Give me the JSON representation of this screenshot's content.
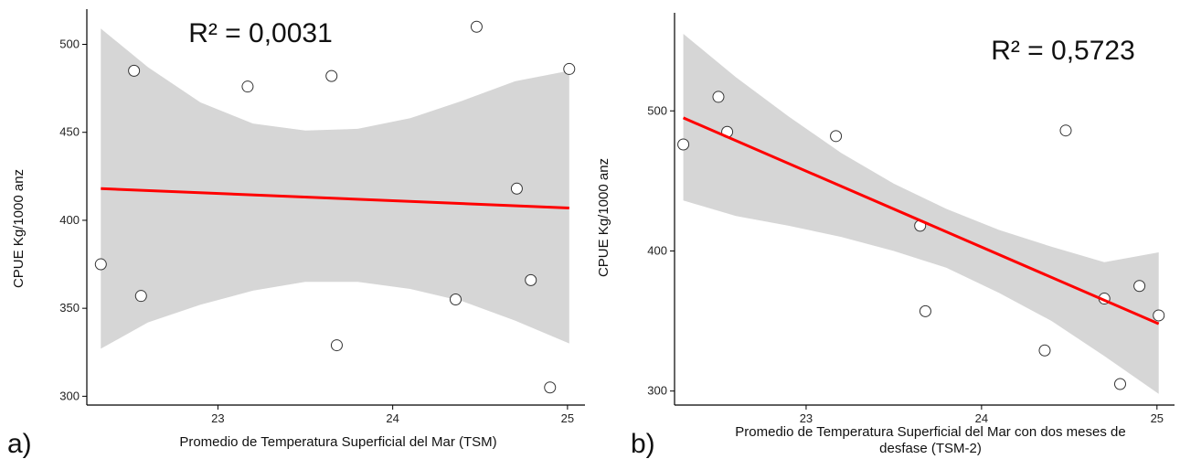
{
  "chart_data": [
    {
      "type": "scatter",
      "panel_label": "a)",
      "annotation": "R² = 0,0031",
      "xlabel": "Promedio de Temperatura Superficial del Mar (TSM)",
      "ylabel": "CPUE Kg/1000 anz",
      "xlim": [
        22.25,
        25.1
      ],
      "ylim": [
        295,
        520
      ],
      "x_ticks": [
        23,
        24,
        25
      ],
      "x_tick_labels": [
        "23",
        "24",
        "25"
      ],
      "y_ticks": [
        300,
        350,
        400,
        450,
        500
      ],
      "y_tick_labels": [
        "300",
        "350",
        "400",
        "450",
        "500"
      ],
      "points": [
        {
          "x": 22.33,
          "y": 375
        },
        {
          "x": 22.52,
          "y": 485
        },
        {
          "x": 22.56,
          "y": 357
        },
        {
          "x": 23.17,
          "y": 476
        },
        {
          "x": 23.65,
          "y": 482
        },
        {
          "x": 23.68,
          "y": 329
        },
        {
          "x": 24.36,
          "y": 355
        },
        {
          "x": 24.48,
          "y": 510
        },
        {
          "x": 24.71,
          "y": 418
        },
        {
          "x": 24.79,
          "y": 366
        },
        {
          "x": 24.9,
          "y": 305
        },
        {
          "x": 25.01,
          "y": 486
        }
      ],
      "fit_line": {
        "x": [
          22.33,
          25.01
        ],
        "y": [
          418,
          407
        ]
      },
      "confidence_band": {
        "x": [
          22.33,
          22.6,
          22.9,
          23.2,
          23.5,
          23.8,
          24.1,
          24.4,
          24.7,
          25.01
        ],
        "upper": [
          509,
          487,
          467,
          455,
          451,
          452,
          458,
          468,
          479,
          485
        ],
        "lower": [
          327,
          342,
          352,
          360,
          365,
          365,
          361,
          354,
          343,
          330
        ]
      },
      "grid": false,
      "colors": {
        "fit": "#ff0000",
        "band": "#d6d6d6",
        "point_fill": "#ffffff",
        "point_stroke": "#333333"
      }
    },
    {
      "type": "scatter",
      "panel_label": "b)",
      "annotation": "R² = 0,5723",
      "xlabel": "Promedio de Temperatura Superficial del Mar con dos meses de desfase (TSM-2)",
      "xlabel_lines": [
        "Promedio de Temperatura Superficial del Mar con dos meses de",
        "desfase (TSM-2)"
      ],
      "ylabel": "CPUE Kg/1000 anz",
      "xlim": [
        22.25,
        25.1
      ],
      "ylim": [
        290,
        570
      ],
      "x_ticks": [
        23,
        24,
        25
      ],
      "x_tick_labels": [
        "23",
        "24",
        "25"
      ],
      "y_ticks": [
        300,
        400,
        500
      ],
      "y_tick_labels": [
        "300",
        "400",
        "500"
      ],
      "points": [
        {
          "x": 22.3,
          "y": 476
        },
        {
          "x": 22.5,
          "y": 510
        },
        {
          "x": 22.55,
          "y": 485
        },
        {
          "x": 23.17,
          "y": 482
        },
        {
          "x": 23.65,
          "y": 418
        },
        {
          "x": 23.68,
          "y": 357
        },
        {
          "x": 24.36,
          "y": 329
        },
        {
          "x": 24.48,
          "y": 486
        },
        {
          "x": 24.7,
          "y": 366
        },
        {
          "x": 24.79,
          "y": 305
        },
        {
          "x": 24.9,
          "y": 375
        },
        {
          "x": 25.01,
          "y": 354
        }
      ],
      "fit_line": {
        "x": [
          22.3,
          25.01
        ],
        "y": [
          495,
          348
        ]
      },
      "confidence_band": {
        "x": [
          22.3,
          22.6,
          22.9,
          23.2,
          23.5,
          23.8,
          24.1,
          24.4,
          24.7,
          25.01
        ],
        "upper": [
          555,
          524,
          496,
          470,
          448,
          430,
          415,
          403,
          392,
          399
        ],
        "lower": [
          436,
          425,
          418,
          410,
          400,
          388,
          370,
          350,
          325,
          298
        ]
      },
      "grid": false,
      "colors": {
        "fit": "#ff0000",
        "band": "#d6d6d6",
        "point_fill": "#ffffff",
        "point_stroke": "#333333"
      }
    }
  ]
}
